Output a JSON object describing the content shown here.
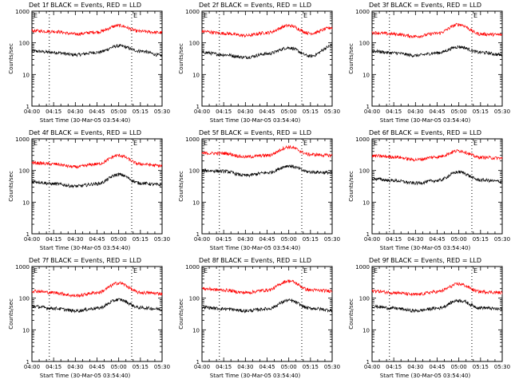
{
  "chart_data": {
    "type": "line",
    "ylabel": "Counts/sec",
    "xlabel": "Start Time (30-Mar-05 03:54:40)",
    "yscale": "log",
    "ylim": [
      1,
      1000
    ],
    "ytick_labels": [
      "1",
      "10",
      "100",
      "1000"
    ],
    "xlim": [
      "04:00",
      "05:30"
    ],
    "xtick_labels": [
      "04:00",
      "04:15",
      "04:30",
      "04:45",
      "05:00",
      "05:15",
      "05:30"
    ],
    "vertical_dotted_lines": [
      "04:12",
      "05:09"
    ],
    "marker_letters": "E",
    "series_colors": {
      "events": "#000000",
      "lld": "#ff0000"
    },
    "panels": [
      {
        "title": "Det 1f BLACK = Events, RED = LLD",
        "x": [
          "04:00",
          "04:15",
          "04:30",
          "04:45",
          "05:00",
          "05:15",
          "05:30"
        ],
        "series": [
          {
            "values": [
              55,
              50,
              42,
              50,
              80,
              55,
              40
            ]
          },
          {
            "values": [
              240,
              230,
              190,
              220,
              350,
              230,
              210
            ]
          }
        ]
      },
      {
        "title": "Det 2f BLACK = Events, RED = LLD",
        "x": [
          "04:00",
          "04:15",
          "04:30",
          "04:45",
          "05:00",
          "05:15",
          "05:30"
        ],
        "series": [
          {
            "values": [
              50,
              42,
              35,
              45,
              70,
              38,
              80
            ]
          },
          {
            "values": [
              230,
              200,
              170,
              210,
              350,
              200,
              300
            ]
          }
        ]
      },
      {
        "title": "Det 3f BLACK = Events, RED = LLD",
        "x": [
          "04:00",
          "04:15",
          "04:30",
          "04:45",
          "05:00",
          "05:15",
          "05:30"
        ],
        "series": [
          {
            "values": [
              55,
              48,
              40,
              48,
              75,
              50,
              42
            ]
          },
          {
            "values": [
              210,
              190,
              160,
              200,
              380,
              190,
              180
            ]
          }
        ]
      },
      {
        "title": "Det 4f BLACK = Events, RED = LLD",
        "x": [
          "04:00",
          "04:15",
          "04:30",
          "04:45",
          "05:00",
          "05:15",
          "05:30"
        ],
        "series": [
          {
            "values": [
              45,
              38,
              32,
              38,
              75,
              40,
              35
            ]
          },
          {
            "values": [
              175,
              160,
              130,
              160,
              300,
              160,
              140
            ]
          }
        ]
      },
      {
        "title": "Det 5f BLACK = Events, RED = LLD",
        "x": [
          "04:00",
          "04:15",
          "04:30",
          "04:45",
          "05:00",
          "05:15",
          "05:30"
        ],
        "series": [
          {
            "values": [
              100,
              95,
              70,
              85,
              140,
              90,
              85
            ]
          },
          {
            "values": [
              350,
              350,
              270,
              300,
              550,
              320,
              300
            ]
          }
        ]
      },
      {
        "title": "Det 6f BLACK = Events, RED = LLD",
        "x": [
          "04:00",
          "04:15",
          "04:30",
          "04:45",
          "05:00",
          "05:15",
          "05:30"
        ],
        "series": [
          {
            "values": [
              55,
              48,
              40,
              48,
              90,
              50,
              45
            ]
          },
          {
            "values": [
              290,
              270,
              220,
              270,
              420,
              260,
              245
            ]
          }
        ]
      },
      {
        "title": "Det 7f BLACK = Events, RED = LLD",
        "x": [
          "04:00",
          "04:15",
          "04:30",
          "04:45",
          "05:00",
          "05:15",
          "05:30"
        ],
        "series": [
          {
            "values": [
              55,
              48,
              40,
              48,
              90,
              50,
              45
            ]
          },
          {
            "values": [
              170,
              150,
              120,
              150,
              300,
              150,
              140
            ]
          }
        ]
      },
      {
        "title": "Det 8f BLACK = Events, RED = LLD",
        "x": [
          "04:00",
          "04:15",
          "04:30",
          "04:45",
          "05:00",
          "05:15",
          "05:30"
        ],
        "series": [
          {
            "values": [
              52,
              46,
              40,
              46,
              85,
              48,
              42
            ]
          },
          {
            "values": [
              200,
              180,
              150,
              180,
              350,
              180,
              170
            ]
          }
        ]
      },
      {
        "title": "Det 9f BLACK = Events, RED = LLD",
        "x": [
          "04:00",
          "04:15",
          "04:30",
          "04:45",
          "05:00",
          "05:15",
          "05:30"
        ],
        "series": [
          {
            "values": [
              55,
              48,
              40,
              48,
              85,
              50,
              45
            ]
          },
          {
            "values": [
              170,
              150,
              130,
              160,
              280,
              160,
              150
            ]
          }
        ]
      }
    ]
  }
}
